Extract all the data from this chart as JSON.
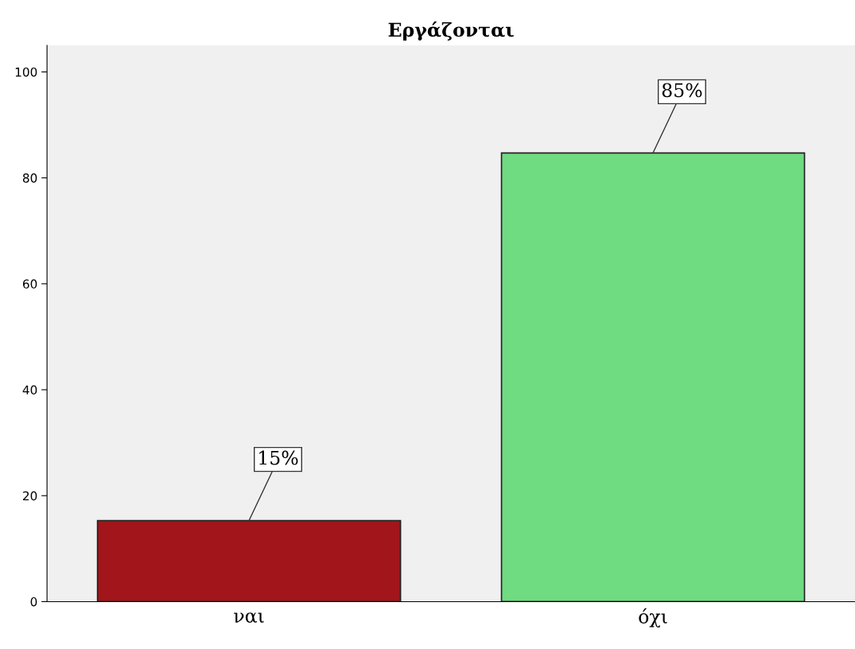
{
  "chart_data": {
    "type": "bar",
    "title": "Εργάζονται",
    "categories": [
      "ναι",
      "όχι"
    ],
    "values": [
      15.3,
      84.7
    ],
    "colors": [
      "#a2151a",
      "#70dc82"
    ],
    "value_labels": [
      "15%",
      "85%"
    ],
    "ylim": [
      0,
      105
    ],
    "yticks": [
      0,
      20,
      40,
      60,
      80,
      100
    ],
    "grid": false,
    "legend": false
  }
}
